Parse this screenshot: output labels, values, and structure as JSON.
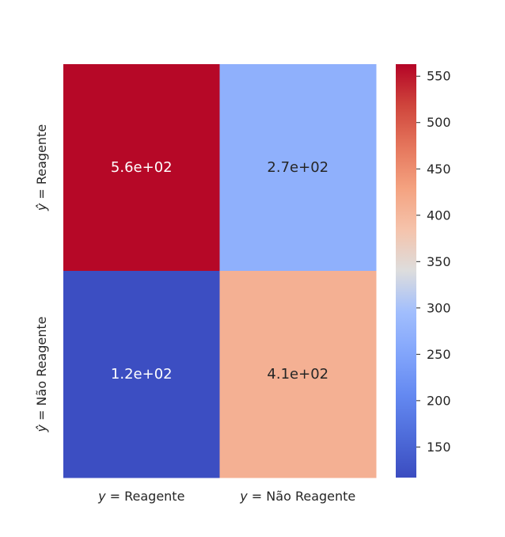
{
  "chart_data": {
    "type": "heatmap",
    "title": "",
    "rows": [
      {
        "label_prefix": "ŷ =",
        "label": "Reagente"
      },
      {
        "label_prefix": "ŷ =",
        "label": "Não Reagente"
      }
    ],
    "columns": [
      {
        "label_prefix": "y =",
        "label": "Reagente"
      },
      {
        "label_prefix": "y =",
        "label": "Não Reagente"
      }
    ],
    "values": [
      [
        560,
        270
      ],
      [
        120,
        410
      ]
    ],
    "annotations": [
      [
        "5.6e+02",
        "2.7e+02"
      ],
      [
        "1.2e+02",
        "4.1e+02"
      ]
    ],
    "colormap": "coolwarm",
    "colorbar": {
      "range": [
        117,
        563
      ],
      "ticks": [
        "150",
        "200",
        "250",
        "300",
        "350",
        "400",
        "450",
        "500",
        "550"
      ]
    },
    "grid": false,
    "legend": "colorbar-right"
  }
}
